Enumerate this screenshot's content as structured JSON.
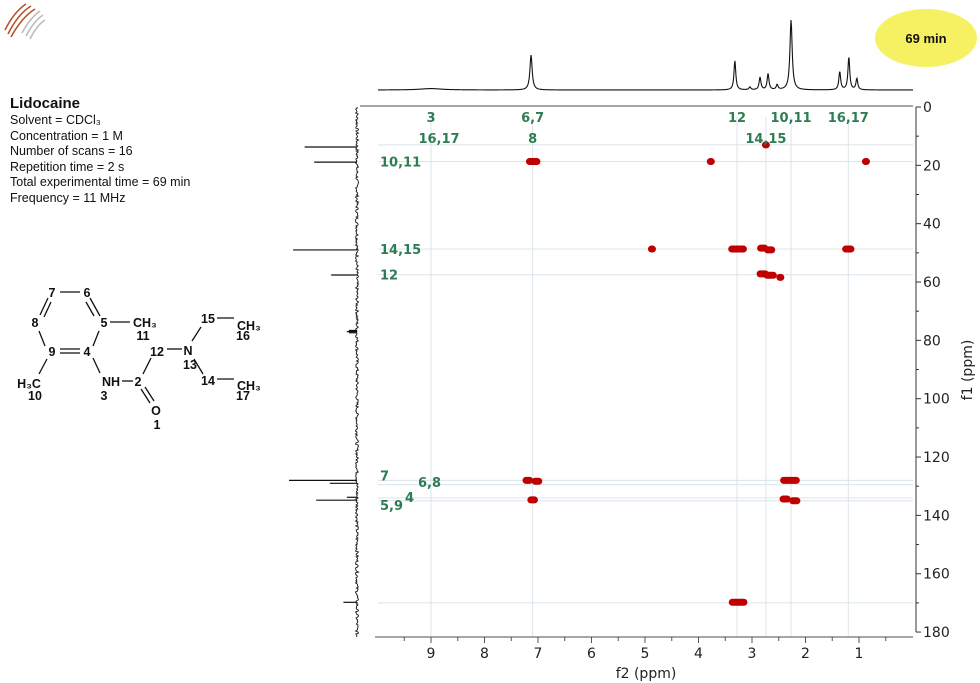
{
  "info": {
    "compound": "Lidocaine",
    "lines": [
      "Solvent = CDCl₃",
      "Concentration = 1 M",
      "Number of scans = 16",
      "Repetition time = 2 s",
      "Total experimental time = 69 min",
      "Frequency = 11 MHz"
    ]
  },
  "badge": {
    "text": "69 min",
    "color": "#f6f163"
  },
  "structure": {
    "atoms": [
      "7",
      "6",
      "8",
      "5",
      "9",
      "4",
      "CH₃",
      "11",
      "12",
      "N",
      "13",
      "15",
      "CH₃",
      "16",
      "14",
      "CH₃",
      "17",
      "NH",
      "3",
      "2",
      "O",
      "1",
      "H₃C",
      "10"
    ]
  },
  "chart_data": {
    "type": "scatter",
    "subtype": "2D NMR contour plot with 1D projections",
    "xlabel": "f2 (ppm)",
    "ylabel": "f1 (ppm)",
    "xlim": [
      10,
      0
    ],
    "ylim": [
      0,
      180
    ],
    "x_ticks": [
      "9",
      "8",
      "7",
      "6",
      "5",
      "4",
      "3",
      "2",
      "1"
    ],
    "y_ticks": [
      "0",
      "20",
      "40",
      "60",
      "80",
      "100",
      "120",
      "140",
      "160",
      "180"
    ],
    "grid": "correlation lines only",
    "peak_color": "#c00000",
    "annotation_color": "#2e7d52",
    "cross_peaks": [
      {
        "f2": 7.09,
        "f1": 18.7,
        "w": 0.12
      },
      {
        "f2": 3.77,
        "f1": 18.7,
        "w": 0
      },
      {
        "f2": 0.87,
        "f1": 18.7,
        "w": 0
      },
      {
        "f2": 2.74,
        "f1": 13.0,
        "w": 0
      },
      {
        "f2": 4.87,
        "f1": 48.7,
        "w": 0
      },
      {
        "f2": 3.27,
        "f1": 48.7,
        "w": 0.2
      },
      {
        "f2": 2.8,
        "f1": 48.4,
        "w": 0.06
      },
      {
        "f2": 2.67,
        "f1": 49.0,
        "w": 0.06
      },
      {
        "f2": 1.2,
        "f1": 48.7,
        "w": 0.08
      },
      {
        "f2": 2.8,
        "f1": 57.2,
        "w": 0.08
      },
      {
        "f2": 2.66,
        "f1": 57.7,
        "w": 0.1
      },
      {
        "f2": 2.47,
        "f1": 58.4,
        "w": 0
      },
      {
        "f2": 7.19,
        "f1": 128.0,
        "w": 0.05
      },
      {
        "f2": 7.02,
        "f1": 128.3,
        "w": 0.05
      },
      {
        "f2": 7.1,
        "f1": 134.7,
        "w": 0.05
      },
      {
        "f2": 2.29,
        "f1": 128.0,
        "w": 0.22
      },
      {
        "f2": 2.38,
        "f1": 134.4,
        "w": 0.06
      },
      {
        "f2": 2.2,
        "f1": 135.0,
        "w": 0.06
      },
      {
        "f2": 3.26,
        "f1": 169.8,
        "w": 0.2
      }
    ],
    "f2_correlation_lines": [
      {
        "ppm": 9.0,
        "label": "3",
        "row": 0
      },
      {
        "ppm": 8.85,
        "label": "16,17",
        "row": 1,
        "line": false
      },
      {
        "ppm": 7.1,
        "label": "6,7",
        "row": 0
      },
      {
        "ppm": 7.1,
        "label": "8",
        "row": 1,
        "line": false
      },
      {
        "ppm": 3.28,
        "label": "12",
        "row": 0
      },
      {
        "ppm": 2.74,
        "label": "14,15",
        "row": 1
      },
      {
        "ppm": 2.27,
        "label": "10,11",
        "row": 0
      },
      {
        "ppm": 1.2,
        "label": "16,17",
        "row": 0
      }
    ],
    "f1_correlation_lines": [
      {
        "ppm": 13.0,
        "label": ""
      },
      {
        "ppm": 18.7,
        "label": "10,11",
        "col": 0
      },
      {
        "ppm": 48.7,
        "label": "14,15",
        "col": 0
      },
      {
        "ppm": 57.5,
        "label": "12",
        "col": 0
      },
      {
        "ppm": 128.0,
        "label": "7",
        "col": 0
      },
      {
        "ppm": 129.5,
        "label": "6,8",
        "col": 2
      },
      {
        "ppm": 134.0,
        "label": "4",
        "col": 1
      },
      {
        "ppm": 135.0,
        "label": "5,9",
        "col": 0
      },
      {
        "ppm": 170.0,
        "label": ""
      }
    ],
    "f2_projection_peaks": [
      {
        "ppm": 9.0,
        "height": 0.02,
        "width": 0.25
      },
      {
        "ppm": 7.13,
        "height": 0.5,
        "width": 0.025
      },
      {
        "ppm": 3.32,
        "height": 0.42,
        "width": 0.02
      },
      {
        "ppm": 3.04,
        "height": 0.04,
        "width": 0.02
      },
      {
        "ppm": 2.85,
        "height": 0.18,
        "width": 0.02
      },
      {
        "ppm": 2.7,
        "height": 0.23,
        "width": 0.02
      },
      {
        "ppm": 2.53,
        "height": 0.07,
        "width": 0.02
      },
      {
        "ppm": 2.27,
        "height": 1.0,
        "width": 0.025
      },
      {
        "ppm": 1.36,
        "height": 0.26,
        "width": 0.02
      },
      {
        "ppm": 1.19,
        "height": 0.47,
        "width": 0.02
      },
      {
        "ppm": 1.04,
        "height": 0.16,
        "width": 0.02
      }
    ],
    "f1_projection_peaks": [
      {
        "ppm": 13.7,
        "height": 0.77
      },
      {
        "ppm": 18.9,
        "height": 0.63
      },
      {
        "ppm": 49.0,
        "height": 0.94
      },
      {
        "ppm": 57.6,
        "height": 0.38
      },
      {
        "ppm": 76.6,
        "height": 0.12
      },
      {
        "ppm": 77.0,
        "height": 0.15
      },
      {
        "ppm": 77.4,
        "height": 0.12
      },
      {
        "ppm": 128.0,
        "height": 1.0
      },
      {
        "ppm": 129.0,
        "height": 0.4
      },
      {
        "ppm": 133.8,
        "height": 0.15
      },
      {
        "ppm": 134.8,
        "height": 0.6
      },
      {
        "ppm": 169.8,
        "height": 0.2
      }
    ]
  }
}
